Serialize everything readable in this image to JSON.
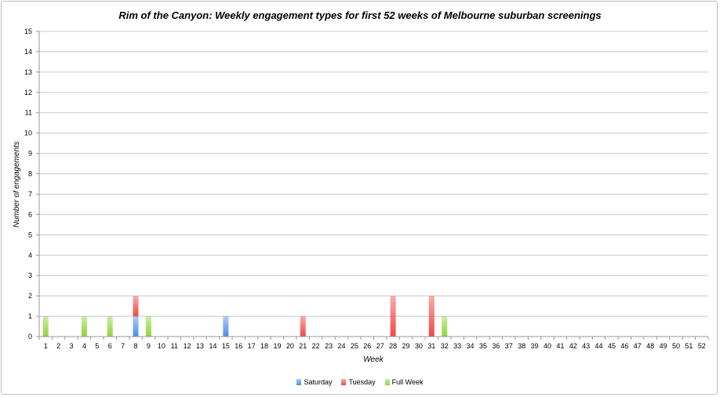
{
  "chart_data": {
    "type": "bar",
    "stacked": true,
    "title": "Rim of the Canyon: Weekly engagement types for first 52 weeks of Melbourne suburban screenings",
    "xlabel": "Week",
    "ylabel": "Number of engagements",
    "ylim": [
      0,
      15
    ],
    "yticks": [
      0,
      1,
      2,
      3,
      4,
      5,
      6,
      7,
      8,
      9,
      10,
      11,
      12,
      13,
      14,
      15
    ],
    "grid": true,
    "legend_position": "bottom",
    "categories": [
      1,
      2,
      3,
      4,
      5,
      6,
      7,
      8,
      9,
      10,
      11,
      12,
      13,
      14,
      15,
      16,
      17,
      18,
      19,
      20,
      21,
      22,
      23,
      24,
      25,
      26,
      27,
      28,
      29,
      30,
      31,
      32,
      33,
      34,
      35,
      36,
      37,
      38,
      39,
      40,
      41,
      42,
      43,
      44,
      45,
      46,
      47,
      48,
      49,
      50,
      51,
      52
    ],
    "series": [
      {
        "name": "Saturday",
        "color": "#4a90e2",
        "values": [
          0,
          0,
          0,
          0,
          0,
          0,
          0,
          1,
          0,
          0,
          0,
          0,
          0,
          0,
          1,
          0,
          0,
          0,
          0,
          0,
          0,
          0,
          0,
          0,
          0,
          0,
          0,
          0,
          0,
          0,
          0,
          0,
          0,
          0,
          0,
          0,
          0,
          0,
          0,
          0,
          0,
          0,
          0,
          0,
          0,
          0,
          0,
          0,
          0,
          0,
          0,
          0
        ]
      },
      {
        "name": "Tuesday",
        "color": "#f04848",
        "values": [
          0,
          0,
          0,
          0,
          0,
          0,
          0,
          1,
          0,
          0,
          0,
          0,
          0,
          0,
          0,
          0,
          0,
          0,
          0,
          0,
          1,
          0,
          0,
          0,
          0,
          0,
          0,
          2,
          0,
          0,
          2,
          0,
          0,
          0,
          0,
          0,
          0,
          0,
          0,
          0,
          0,
          0,
          0,
          0,
          0,
          0,
          0,
          0,
          0,
          0,
          0,
          0
        ]
      },
      {
        "name": "Full Week",
        "color": "#8fd53a",
        "values": [
          1,
          0,
          0,
          1,
          0,
          1,
          0,
          0,
          1,
          0,
          0,
          0,
          0,
          0,
          0,
          0,
          0,
          0,
          0,
          0,
          0,
          0,
          0,
          0,
          0,
          0,
          0,
          0,
          0,
          0,
          0,
          1,
          0,
          0,
          0,
          0,
          0,
          0,
          0,
          0,
          0,
          0,
          0,
          0,
          0,
          0,
          0,
          0,
          0,
          0,
          0,
          0
        ]
      }
    ]
  }
}
